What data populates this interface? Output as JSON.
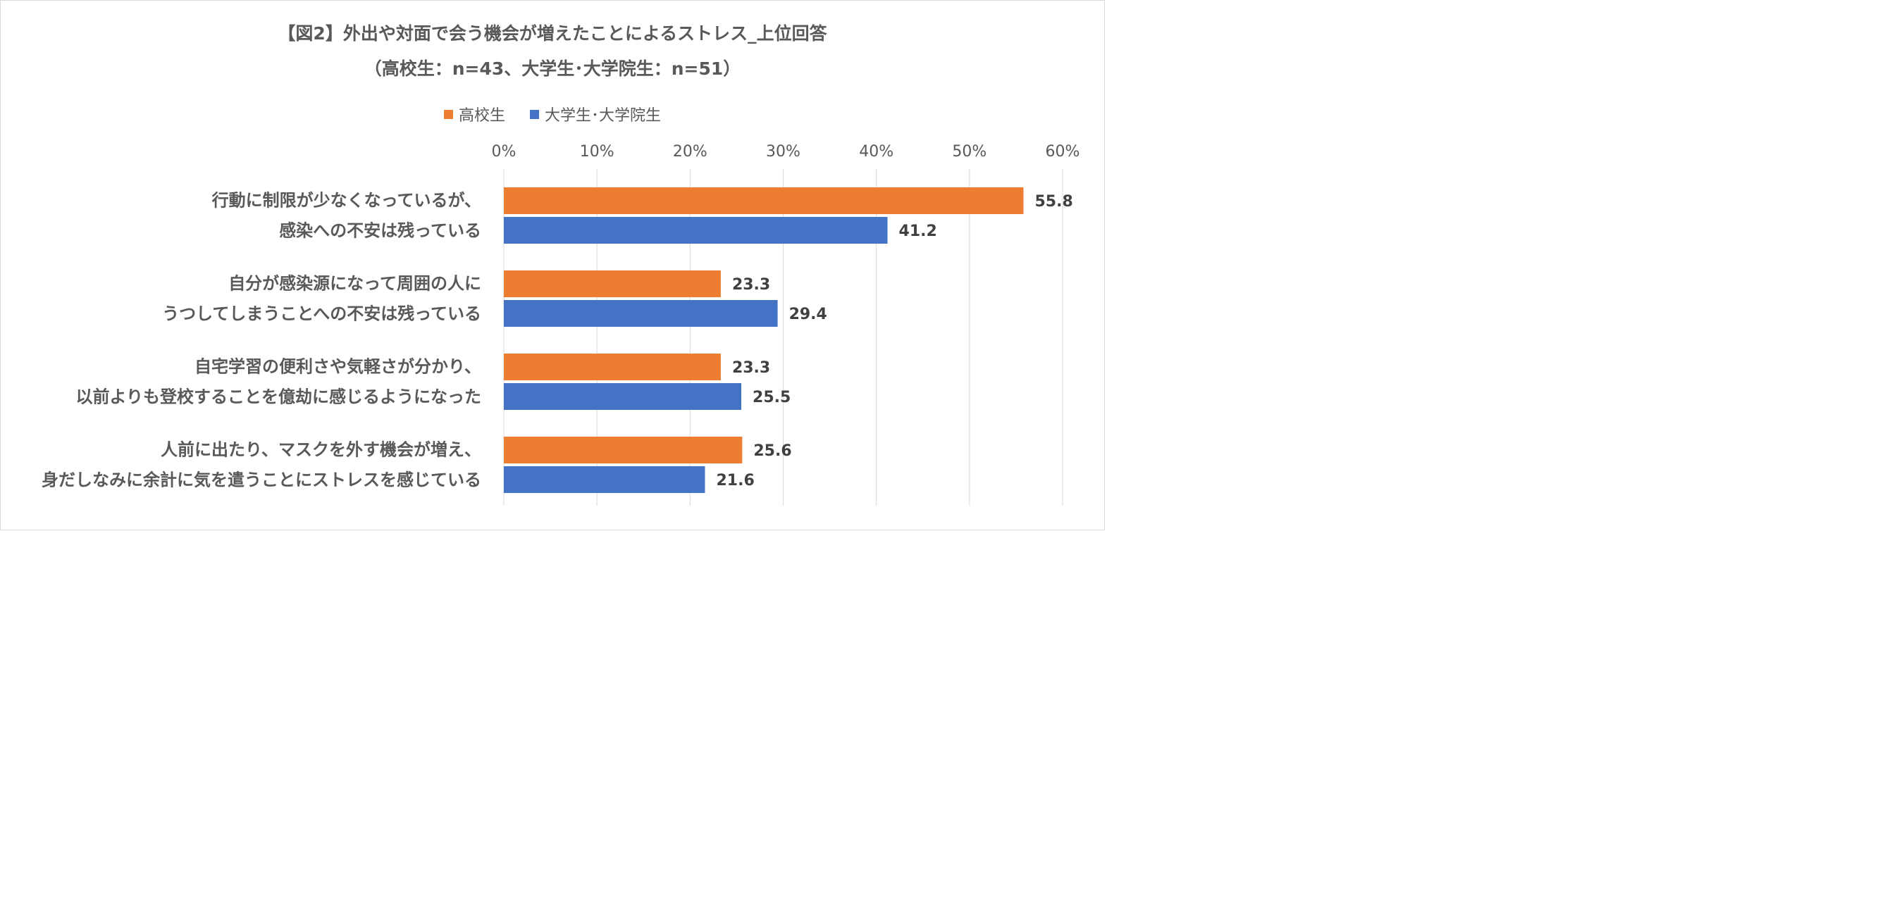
{
  "chart_data": {
    "type": "bar",
    "orientation": "horizontal",
    "title": "【図2】外出や対面で会う機会が増えたことによるストレス_上位回答",
    "subtitle": "（高校生：n=43、大学生･大学院生：n=51）",
    "legend_position": "top",
    "x_ticks": [
      "0%",
      "10%",
      "20%",
      "30%",
      "40%",
      "50%",
      "60%"
    ],
    "xlim": [
      0,
      60
    ],
    "grid": true,
    "categories": [
      [
        "行動に制限が少なくなっているが、",
        "感染への不安は残っている"
      ],
      [
        "自分が感染源になって周囲の人に",
        "うつしてしまうことへの不安は残っている"
      ],
      [
        "自宅学習の便利さや気軽さが分かり、",
        "以前よりも登校することを億劫に感じるようになった"
      ],
      [
        "人前に出たり、マスクを外す機会が増え、",
        "身だしなみに余計に気を遣うことにストレスを感じている"
      ]
    ],
    "series": [
      {
        "name": "高校生",
        "color": "#ED7D31",
        "values": [
          55.8,
          23.3,
          23.3,
          25.6
        ],
        "labels": [
          "55.8",
          "23.3",
          "23.3",
          "25.6"
        ]
      },
      {
        "name": "大学生･大学院生",
        "color": "#4472C4",
        "values": [
          41.2,
          29.4,
          25.5,
          21.6
        ],
        "labels": [
          "41.2",
          "29.4",
          "25.5",
          "21.6"
        ]
      }
    ]
  }
}
